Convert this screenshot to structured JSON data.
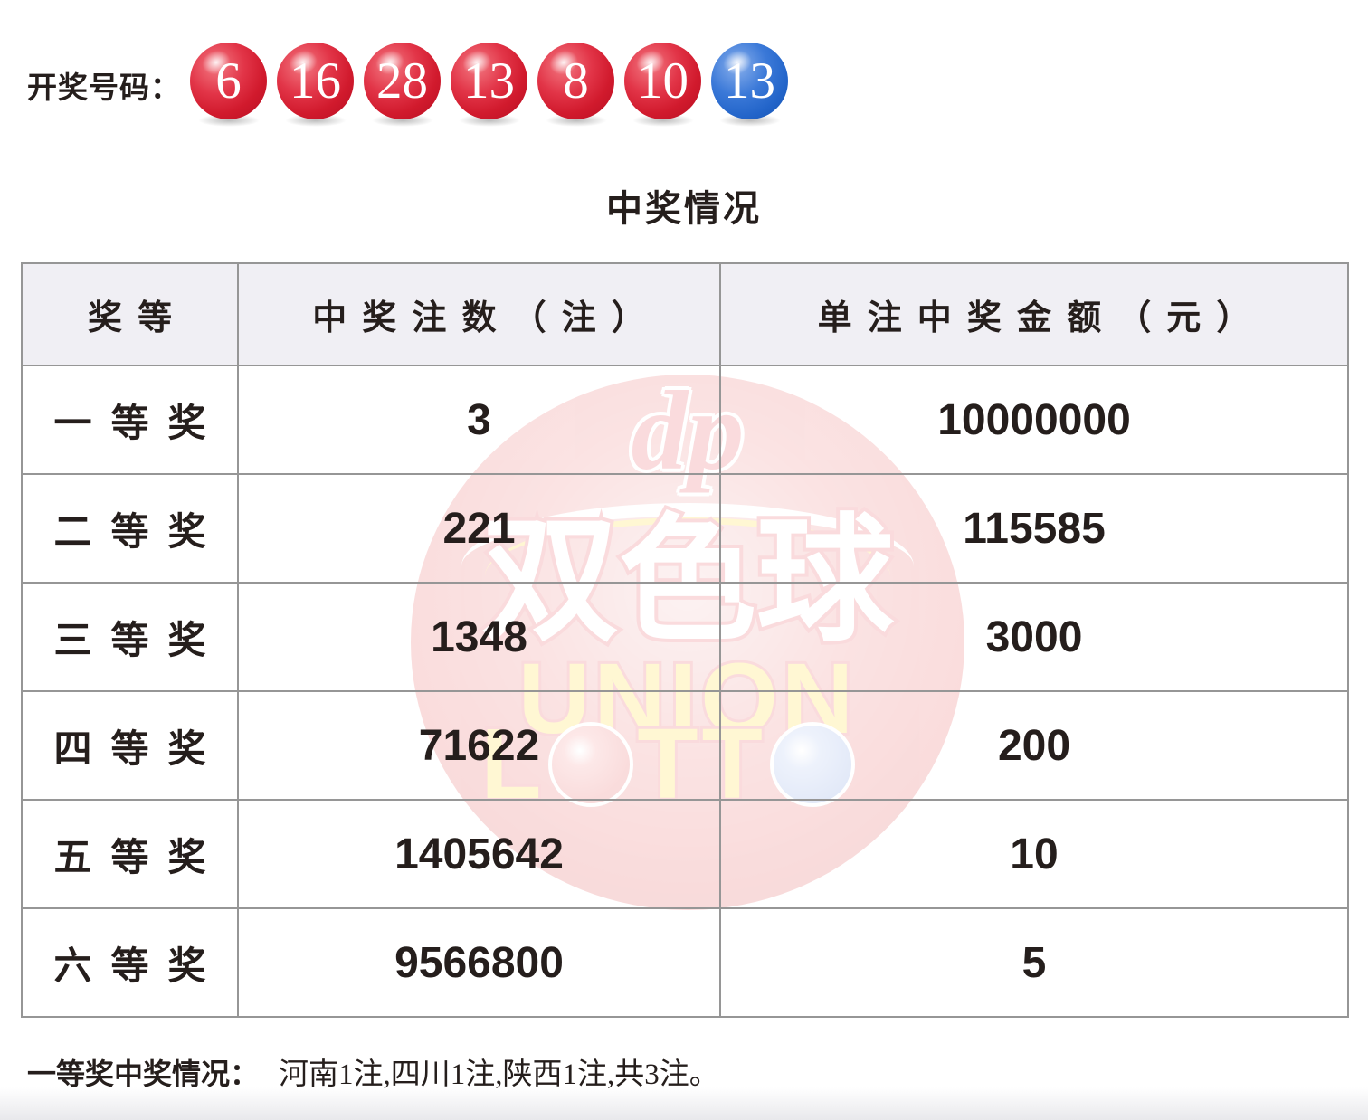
{
  "draw": {
    "label": "开奖号码：",
    "balls": [
      {
        "number": "6",
        "color": "red"
      },
      {
        "number": "16",
        "color": "red"
      },
      {
        "number": "28",
        "color": "red"
      },
      {
        "number": "13",
        "color": "red"
      },
      {
        "number": "8",
        "color": "red"
      },
      {
        "number": "10",
        "color": "red"
      },
      {
        "number": "13",
        "color": "blue"
      }
    ]
  },
  "section_title": "中奖情况",
  "table": {
    "headers": [
      "奖等",
      "中奖注数（注）",
      "单注中奖金额（元）"
    ],
    "rows": [
      {
        "tier": "一等奖",
        "count": "3",
        "amount": "10000000"
      },
      {
        "tier": "二等奖",
        "count": "221",
        "amount": "115585"
      },
      {
        "tier": "三等奖",
        "count": "1348",
        "amount": "3000"
      },
      {
        "tier": "四等奖",
        "count": "71622",
        "amount": "200"
      },
      {
        "tier": "五等奖",
        "count": "1405642",
        "amount": "10"
      },
      {
        "tier": "六等奖",
        "count": "9566800",
        "amount": "5"
      }
    ]
  },
  "footnote": {
    "label": "一等奖中奖情况：",
    "detail": "河南1注,四川1注,陕西1注,共3注。"
  },
  "watermark": {
    "logo": "dp",
    "cn": "双色球",
    "union": "UNION",
    "lotto_l": "L",
    "lotto_tt": "TT"
  },
  "colors": {
    "red_ball": "#d11a2d",
    "blue_ball": "#2264c9",
    "header_bg": "#f0eff4",
    "table_border": "#969696",
    "text": "#251e1c",
    "watermark_red": "#e2333d",
    "watermark_yellow": "#ffd100"
  }
}
